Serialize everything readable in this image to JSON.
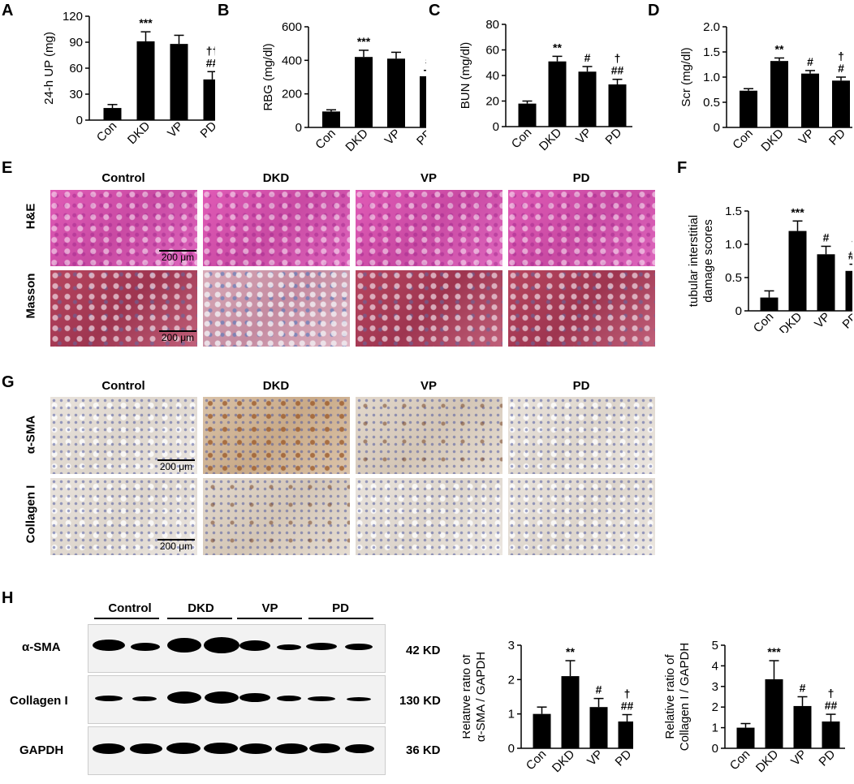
{
  "panels": {
    "A": "A",
    "B": "B",
    "C": "C",
    "D": "D",
    "E": "E",
    "F": "F",
    "G": "G",
    "H": "H"
  },
  "micrograph_E": {
    "columns": [
      "Control",
      "DKD",
      "VP",
      "PD"
    ],
    "rows": [
      "H&E",
      "Masson"
    ],
    "scale": "200 μm"
  },
  "micrograph_G": {
    "columns": [
      "Control",
      "DKD",
      "VP",
      "PD"
    ],
    "rows": [
      "α-SMA",
      "Collagen I"
    ],
    "scale": "200 μm"
  },
  "blot_H": {
    "groups": [
      "Control",
      "DKD",
      "VP",
      "PD"
    ],
    "rows": [
      {
        "label": "α-SMA",
        "size": "42 KD"
      },
      {
        "label": "Collagen I",
        "size": "130 KD"
      },
      {
        "label": "GAPDH",
        "size": "36 KD"
      }
    ]
  },
  "chart_data": [
    {
      "id": "A",
      "type": "bar",
      "categories": [
        "Con",
        "DKD",
        "VP",
        "PD"
      ],
      "values": [
        14,
        91,
        88,
        47
      ],
      "errors": [
        4,
        11,
        10,
        9
      ],
      "ylabel": "24-h UP (mg)",
      "ylim": [
        0,
        120
      ],
      "yticks": [
        0,
        30,
        60,
        90,
        120
      ],
      "yticklabels": [
        "0",
        "30",
        "60",
        "90",
        "120"
      ],
      "annotations": [
        [],
        [
          "***"
        ],
        [],
        [
          "††",
          "##"
        ]
      ]
    },
    {
      "id": "B",
      "type": "bar",
      "categories": [
        "Con",
        "DKD",
        "VP",
        "PD"
      ],
      "values": [
        95,
        420,
        410,
        305
      ],
      "errors": [
        10,
        40,
        38,
        35
      ],
      "ylabel": "RBG (mg/dl)",
      "ylim": [
        0,
        600
      ],
      "yticks": [
        0,
        200,
        400,
        600
      ],
      "yticklabels": [
        "0",
        "200",
        "400",
        "600"
      ],
      "annotations": [
        [],
        [
          "***"
        ],
        [],
        [
          "†",
          "#"
        ]
      ]
    },
    {
      "id": "C",
      "type": "bar",
      "categories": [
        "Con",
        "DKD",
        "VP",
        "PD"
      ],
      "values": [
        18,
        51,
        43,
        33
      ],
      "errors": [
        2,
        4,
        4,
        4
      ],
      "ylabel": "BUN (mg/dl)",
      "ylim": [
        0,
        80
      ],
      "yticks": [
        0,
        20,
        40,
        60,
        80
      ],
      "yticklabels": [
        "0",
        "20",
        "40",
        "60",
        "80"
      ],
      "annotations": [
        [],
        [
          "**"
        ],
        [
          "#"
        ],
        [
          "†",
          "##"
        ]
      ]
    },
    {
      "id": "D",
      "type": "bar",
      "categories": [
        "Con",
        "DKD",
        "VP",
        "PD"
      ],
      "values": [
        0.73,
        1.32,
        1.07,
        0.93
      ],
      "errors": [
        0.04,
        0.06,
        0.06,
        0.07
      ],
      "ylabel": "Scr (mg/dl)",
      "ylim": [
        0,
        2.0
      ],
      "yticks": [
        0,
        0.5,
        1.0,
        1.5,
        2.0
      ],
      "yticklabels": [
        "0",
        "0.5",
        "1.0",
        "1.5",
        "2.0"
      ],
      "annotations": [
        [],
        [
          "**"
        ],
        [
          "#"
        ],
        [
          "†",
          "#"
        ]
      ]
    },
    {
      "id": "F",
      "type": "bar",
      "categories": [
        "Con",
        "DKD",
        "VP",
        "PD"
      ],
      "values": [
        0.2,
        1.2,
        0.85,
        0.6
      ],
      "errors": [
        0.1,
        0.15,
        0.12,
        0.1
      ],
      "ylabel": "tubular interstitial damage scores",
      "ylim": [
        0,
        1.5
      ],
      "yticks": [
        0,
        0.5,
        1.0,
        1.5
      ],
      "yticklabels": [
        "0",
        "0.5",
        "1.0",
        "1.5"
      ],
      "annotations": [
        [],
        [
          "***"
        ],
        [
          "#"
        ],
        [
          "†",
          "##"
        ]
      ]
    },
    {
      "id": "H1",
      "type": "bar",
      "categories": [
        "Con",
        "DKD",
        "VP",
        "PD"
      ],
      "values": [
        1.0,
        2.1,
        1.2,
        0.78
      ],
      "errors": [
        0.2,
        0.45,
        0.25,
        0.2
      ],
      "ylabel": "Relative ratio of α-SMA / GAPDH",
      "ylim": [
        0,
        3
      ],
      "yticks": [
        0,
        1,
        2,
        3
      ],
      "yticklabels": [
        "0",
        "1",
        "2",
        "3"
      ],
      "annotations": [
        [],
        [
          "**"
        ],
        [
          "#"
        ],
        [
          "†",
          "##"
        ]
      ]
    },
    {
      "id": "H2",
      "type": "bar",
      "categories": [
        "Con",
        "DKD",
        "VP",
        "PD"
      ],
      "values": [
        1.0,
        3.35,
        2.05,
        1.3
      ],
      "errors": [
        0.2,
        0.9,
        0.45,
        0.35
      ],
      "ylabel": "Relative ratio of Collagen I / GAPDH",
      "ylim": [
        0,
        5
      ],
      "yticks": [
        0,
        1,
        2,
        3,
        4,
        5
      ],
      "yticklabels": [
        "0",
        "1",
        "2",
        "3",
        "4",
        "5"
      ],
      "annotations": [
        [],
        [
          "***"
        ],
        [
          "#"
        ],
        [
          "†",
          "##"
        ]
      ]
    }
  ]
}
